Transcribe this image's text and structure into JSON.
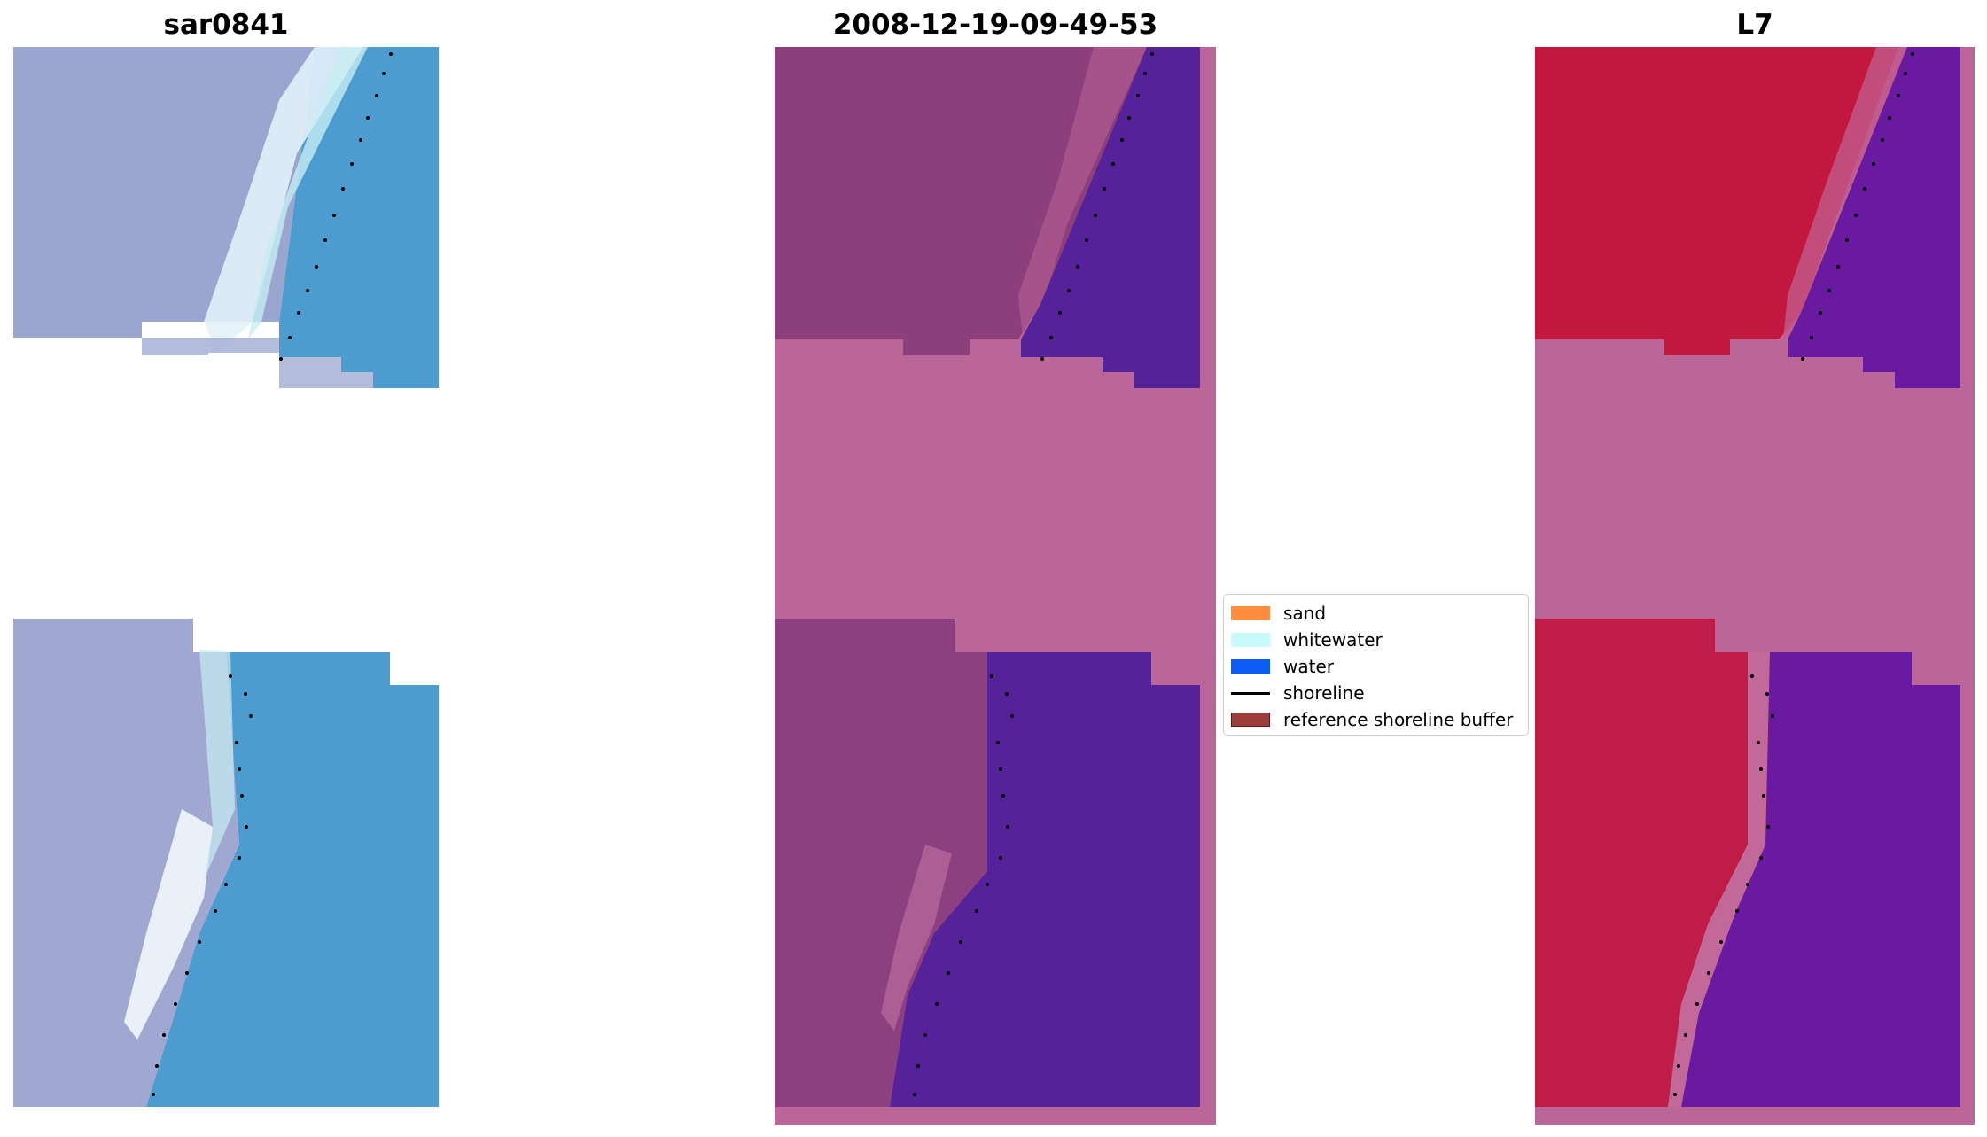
{
  "panels": [
    {
      "title": "sar0841"
    },
    {
      "title": "2008-12-19-09-49-53"
    },
    {
      "title": "L7"
    }
  ],
  "legend": {
    "items": [
      {
        "label": "sand",
        "color": "#ff8c3f",
        "kind": "patch"
      },
      {
        "label": "whitewater",
        "color": "#c9fbfb",
        "kind": "patch"
      },
      {
        "label": "water",
        "color": "#0a5cf5",
        "kind": "patch"
      },
      {
        "label": "shoreline",
        "color": "#000000",
        "kind": "line"
      },
      {
        "label": "reference shoreline buffer",
        "color": "#9e3b3b",
        "kind": "patch"
      }
    ]
  },
  "colors": {
    "rgb_land": "#9ba6d0",
    "rgb_water": "#4d9ccf",
    "rgb_surf": "#e8f6fb",
    "swir_land": "#8c3f7b",
    "swir_water": "#55229a",
    "swir_nodata": "#bb6699",
    "ndwi_land": "#c2173f",
    "ndwi_water": "#6a1aa1",
    "ndwi_nodata": "#bb6699"
  }
}
